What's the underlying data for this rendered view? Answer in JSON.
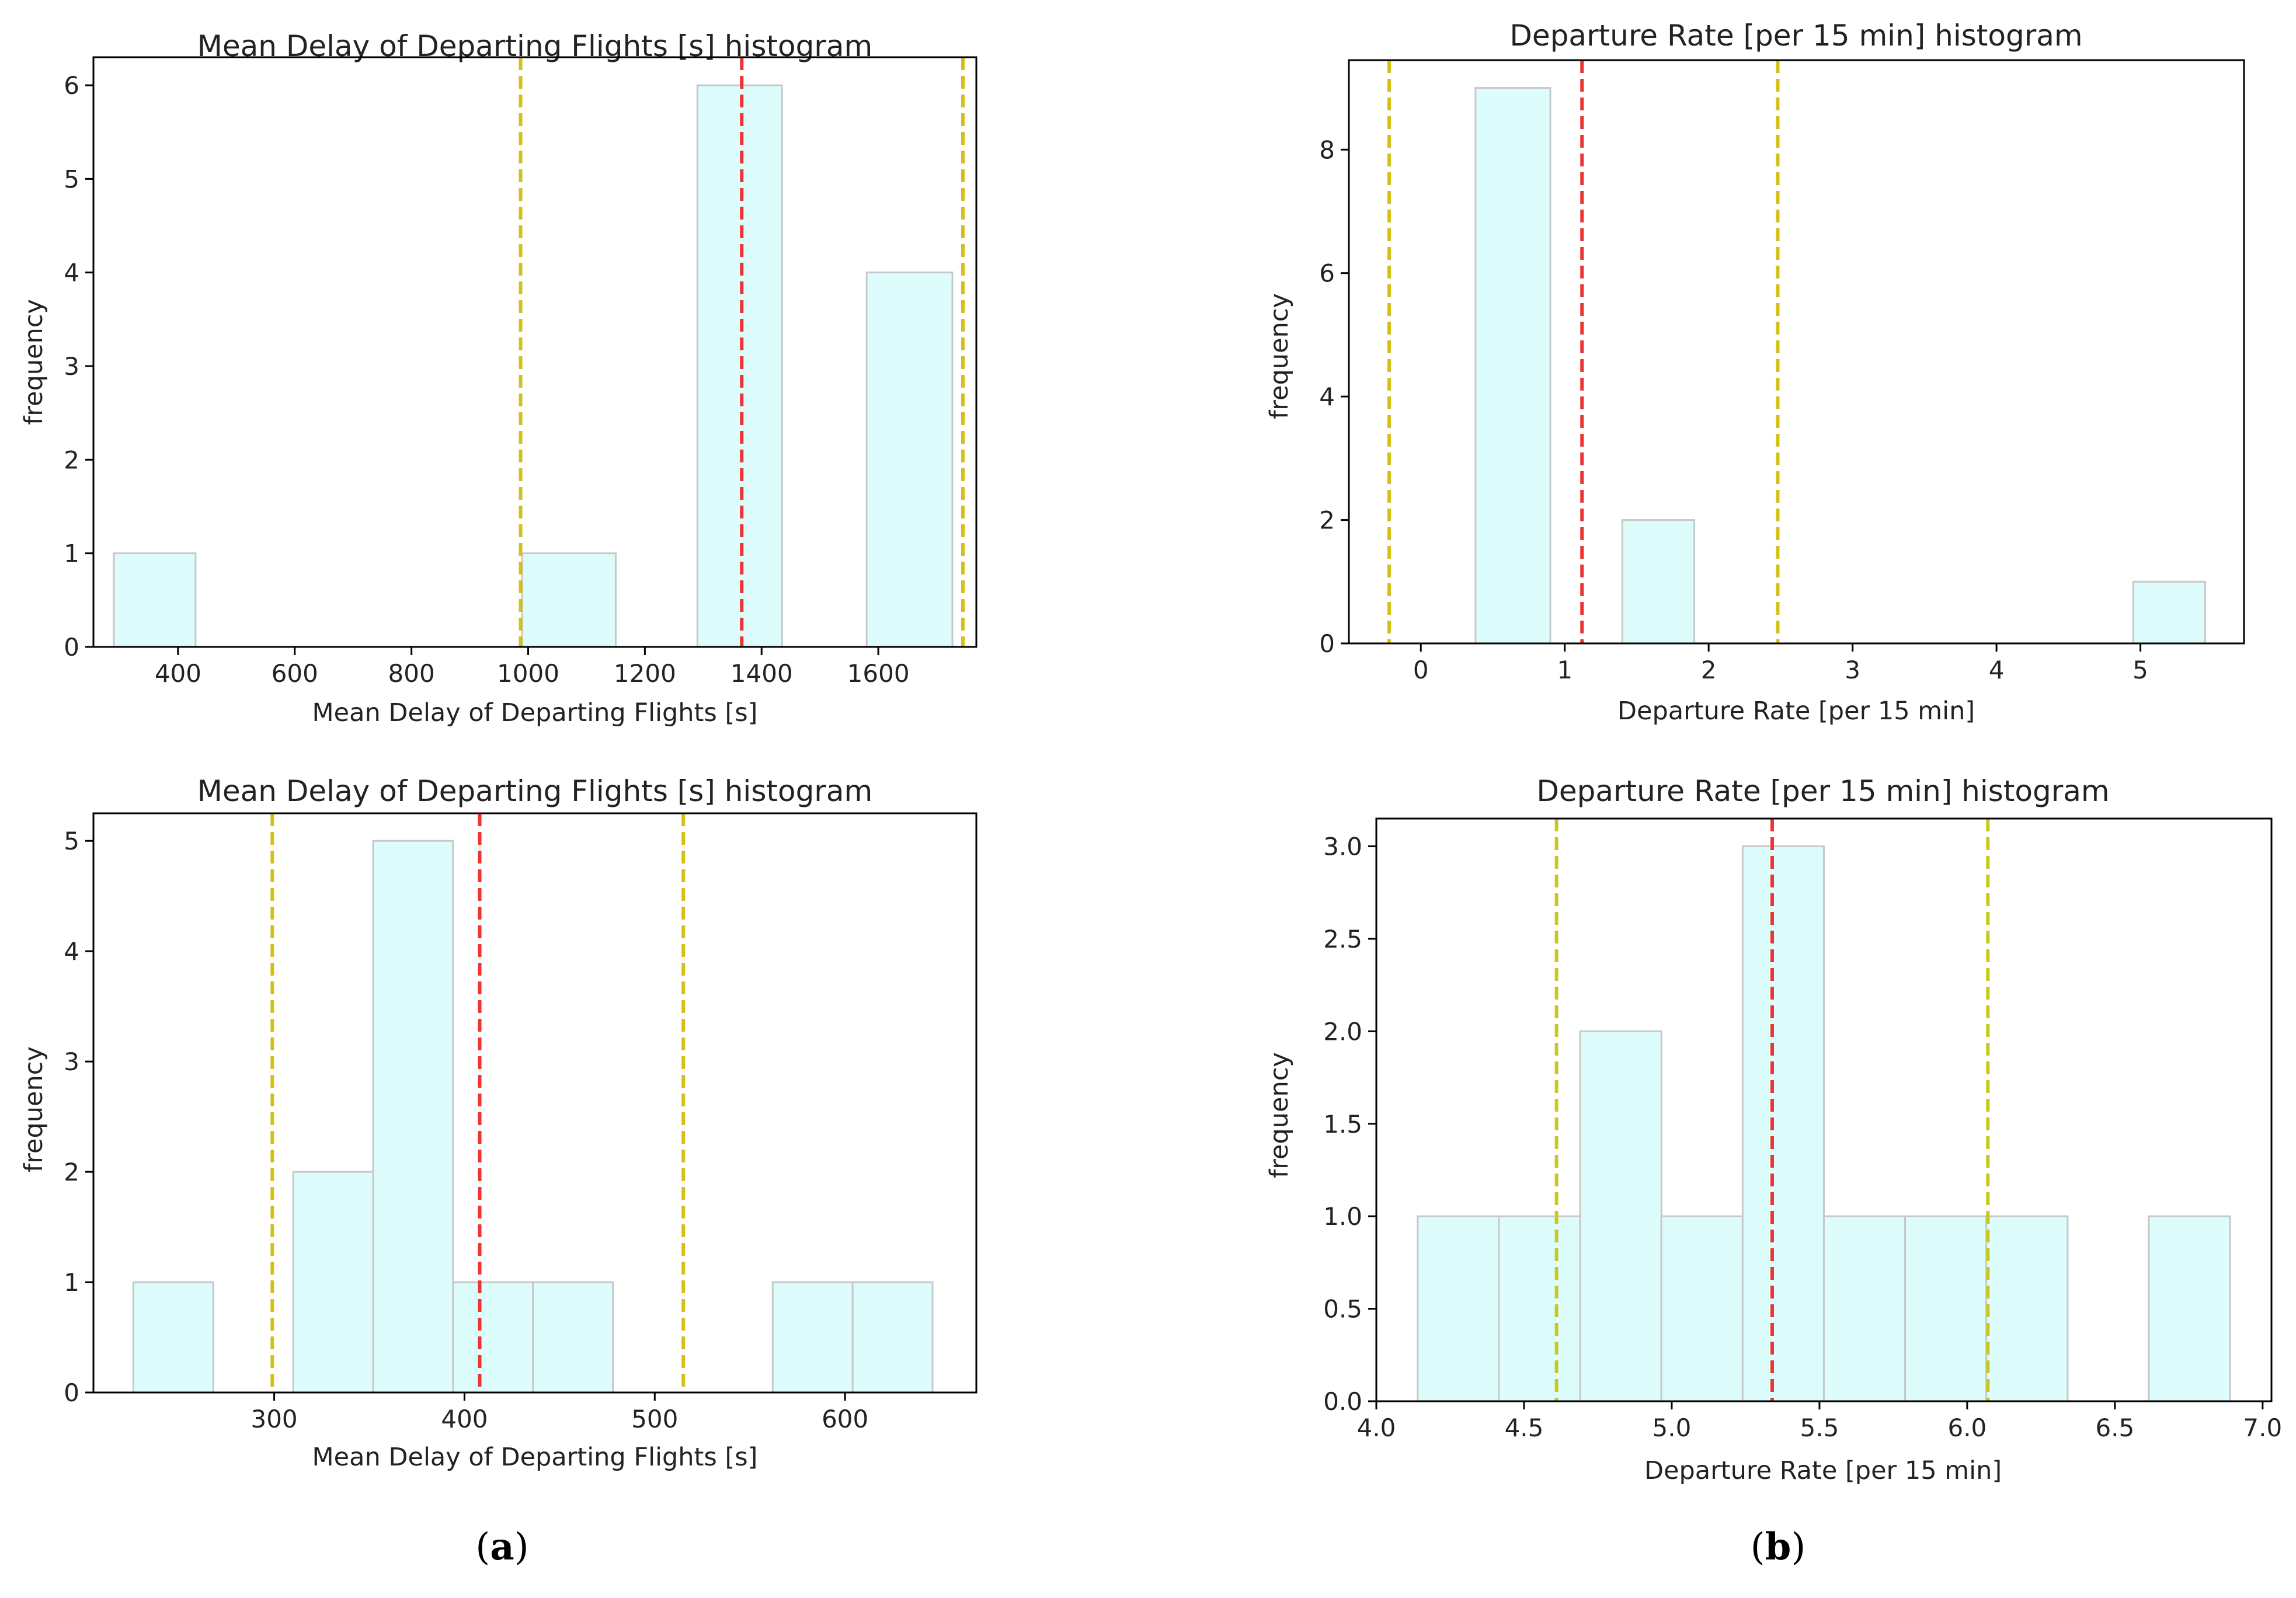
{
  "charts": [
    {
      "title": "Mean Delay of Departing Flights [s] histogram",
      "xlabel": "Mean Delay of Departing Flights [s]",
      "ylabel": "frequency",
      "xlim": [
        255,
        1768
      ],
      "ylim": [
        0,
        6.3
      ],
      "xticks": [
        "400",
        "600",
        "800",
        "1000",
        "1200",
        "1400",
        "1600"
      ],
      "xtick_values": [
        400,
        600,
        800,
        1000,
        1200,
        1400,
        1600
      ],
      "yticks": [
        "0",
        "1",
        "2",
        "3",
        "4",
        "5",
        "6"
      ],
      "ytick_values": [
        0,
        1,
        2,
        3,
        4,
        5,
        6
      ]
    },
    {
      "title": "Departure Rate [per 15 min] histogram",
      "xlabel": "Departure Rate [per 15 min]",
      "ylabel": "frequency",
      "xlim": [
        -0.5,
        5.72
      ],
      "ylim": [
        0,
        9.45
      ],
      "xticks": [
        "0",
        "1",
        "2",
        "3",
        "4",
        "5"
      ],
      "xtick_values": [
        0,
        1,
        2,
        3,
        4,
        5
      ],
      "yticks": [
        "0",
        "2",
        "4",
        "6",
        "8"
      ],
      "ytick_values": [
        0,
        2,
        4,
        6,
        8
      ]
    },
    {
      "title": "Mean Delay of Departing Flights [s] histogram",
      "xlabel": "Mean Delay of Departing Flights [s]",
      "ylabel": "frequency",
      "xlim": [
        205,
        669
      ],
      "ylim": [
        0,
        5.25
      ],
      "xticks": [
        "300",
        "400",
        "500",
        "600"
      ],
      "xtick_values": [
        300,
        400,
        500,
        600
      ],
      "yticks": [
        "0",
        "1",
        "2",
        "3",
        "4",
        "5"
      ],
      "ytick_values": [
        0,
        1,
        2,
        3,
        4,
        5
      ]
    },
    {
      "title": "Departure Rate [per 15 min] histogram",
      "xlabel": "Departure Rate [per 15 min]",
      "ylabel": "frequency",
      "xlim": [
        4.0,
        7.03
      ],
      "ylim": [
        0,
        3.15
      ],
      "xticks": [
        "4.0",
        "4.5",
        "5.0",
        "5.5",
        "6.0",
        "6.5",
        "7.0"
      ],
      "xtick_values": [
        4.0,
        4.5,
        5.0,
        5.5,
        6.0,
        6.5,
        7.0
      ],
      "yticks": [
        "0.0",
        "0.5",
        "1.0",
        "1.5",
        "2.0",
        "2.5",
        "3.0"
      ],
      "ytick_values": [
        0,
        0.5,
        1.0,
        1.5,
        2.0,
        2.5,
        3.0
      ]
    }
  ],
  "chart_data": [
    {
      "type": "bar",
      "panel": "a-top",
      "title": "Mean Delay of Departing Flights [s] histogram",
      "xlabel": "Mean Delay of Departing Flights [s]",
      "ylabel": "frequency",
      "bin_edges": [
        290,
        430,
        570,
        710,
        850,
        990,
        1150,
        1290,
        1435,
        1580,
        1727
      ],
      "counts": [
        1,
        0,
        0,
        0,
        0,
        1,
        0,
        6,
        0,
        4
      ],
      "vlines": [
        {
          "x": 987,
          "color": "#d4c017",
          "style": "dashed",
          "role": "lower"
        },
        {
          "x": 1366,
          "color": "#ee3333",
          "style": "dashed",
          "role": "mean"
        },
        {
          "x": 1745,
          "color": "#d4c017",
          "style": "dashed",
          "role": "upper"
        }
      ]
    },
    {
      "type": "bar",
      "panel": "b-top",
      "title": "Departure Rate [per 15 min] histogram",
      "xlabel": "Departure Rate [per 15 min]",
      "ylabel": "frequency",
      "bin_edges": [
        0.38,
        0.9,
        1.4,
        1.9,
        2.4,
        2.9,
        3.4,
        3.9,
        4.4,
        4.95,
        5.45
      ],
      "counts": [
        9,
        0,
        2,
        0,
        0,
        0,
        0,
        0,
        0,
        1
      ],
      "vlines": [
        {
          "x": -0.22,
          "color": "#d4c017",
          "style": "dashed",
          "role": "lower"
        },
        {
          "x": 1.12,
          "color": "#ee3333",
          "style": "dashed",
          "role": "mean"
        },
        {
          "x": 2.48,
          "color": "#d4c017",
          "style": "dashed",
          "role": "upper"
        }
      ]
    },
    {
      "type": "bar",
      "panel": "a-bottom",
      "title": "Mean Delay of Departing Flights [s] histogram",
      "xlabel": "Mean Delay of Departing Flights [s]",
      "ylabel": "frequency",
      "bin_edges": [
        226,
        268,
        310,
        352,
        394,
        436,
        478,
        520,
        562,
        604,
        646
      ],
      "counts": [
        1,
        0,
        2,
        5,
        1,
        1,
        0,
        0,
        1,
        1
      ],
      "vlines": [
        {
          "x": 299,
          "color": "#d4c017",
          "style": "dashed",
          "role": "lower"
        },
        {
          "x": 408,
          "color": "#ee3333",
          "style": "dashed",
          "role": "mean"
        },
        {
          "x": 515,
          "color": "#d4c017",
          "style": "dashed",
          "role": "upper"
        }
      ]
    },
    {
      "type": "bar",
      "panel": "b-bottom",
      "title": "Departure Rate [per 15 min] histogram",
      "xlabel": "Departure Rate [per 15 min]",
      "ylabel": "frequency",
      "bin_edges": [
        4.14,
        4.415,
        4.69,
        4.965,
        5.24,
        5.515,
        5.79,
        6.065,
        6.34,
        6.615,
        6.89
      ],
      "counts": [
        1,
        1,
        2,
        1,
        3,
        1,
        1,
        1,
        0,
        1
      ],
      "vlines": [
        {
          "x": 4.61,
          "color": "#c8c81e",
          "style": "dashed",
          "role": "lower"
        },
        {
          "x": 5.34,
          "color": "#ee3333",
          "style": "dashed",
          "role": "mean"
        },
        {
          "x": 6.07,
          "color": "#c8c81e",
          "style": "dashed",
          "role": "upper"
        }
      ]
    }
  ],
  "captions": {
    "a": {
      "open": "(",
      "letter": "a",
      "close": ")"
    },
    "b": {
      "open": "(",
      "letter": "b",
      "close": ")"
    }
  },
  "colors": {
    "bar_fill": "#ddfdfd",
    "bar_edge": "#c8c8c8",
    "axis": "#000000",
    "text": "#222222"
  }
}
